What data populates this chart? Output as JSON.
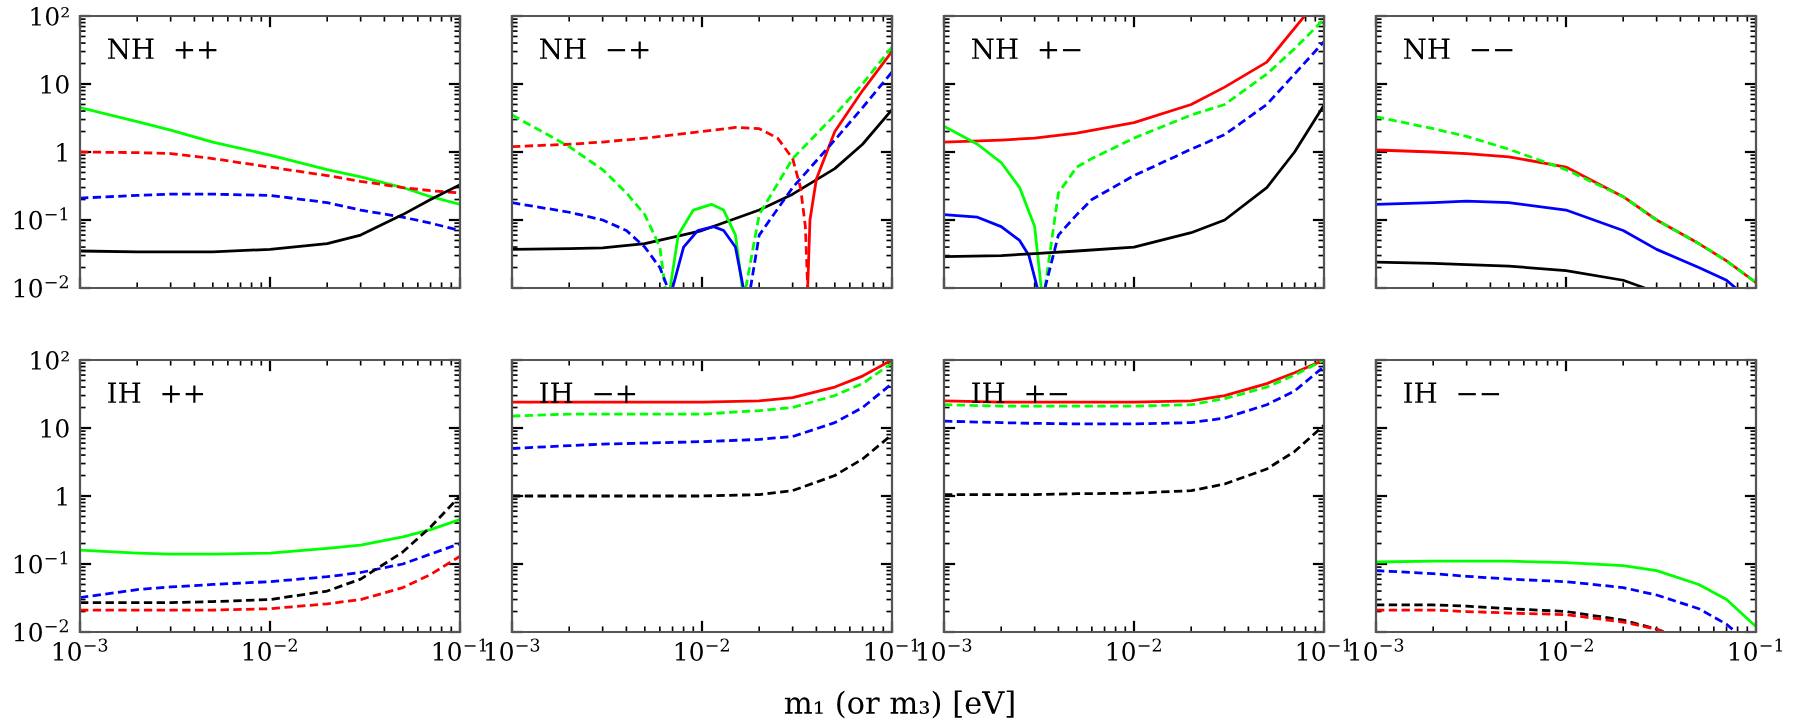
{
  "chart_data": [
    {
      "type": "line",
      "log": "xy",
      "xlim": [
        0.001,
        0.1
      ],
      "ylim": [
        0.01,
        100
      ],
      "tick_labels": "y",
      "grid": false,
      "legend": false,
      "annotations": [
        "NH  ++"
      ],
      "xticks": [
        {
          "value": 0.001,
          "label": null
        },
        {
          "value": 0.01,
          "label": null
        },
        {
          "value": 0.1,
          "label": null
        }
      ],
      "yticks": [
        {
          "value": 0.01,
          "label": "10$^{−2}$"
        },
        {
          "value": 0.1,
          "label": "10$^{−1}$"
        },
        1,
        10,
        {
          "value": 100,
          "label": "10²"
        }
      ],
      "x": [
        0.001,
        0.002,
        0.003,
        0.005,
        0.01,
        0.02,
        0.03,
        0.05,
        0.07,
        0.1
      ],
      "series": [
        {
          "color": "#00ff00",
          "line_style": "solid",
          "values": [
            4.5,
            2.8,
            2.1,
            1.4,
            0.9,
            0.55,
            0.43,
            0.3,
            0.22,
            0.17
          ]
        },
        {
          "color": "#ff0000",
          "line_style": "dashed",
          "values": [
            1.0,
            0.98,
            0.95,
            0.8,
            0.6,
            0.45,
            0.37,
            0.3,
            0.27,
            0.25
          ]
        },
        {
          "color": "#0000ff",
          "line_style": "dashed",
          "values": [
            0.21,
            0.23,
            0.24,
            0.24,
            0.23,
            0.18,
            0.14,
            0.11,
            0.09,
            0.07
          ]
        },
        {
          "color": "#000000",
          "line_style": "solid",
          "values": [
            0.035,
            0.034,
            0.034,
            0.034,
            0.037,
            0.045,
            0.06,
            0.12,
            0.2,
            0.33
          ]
        }
      ]
    },
    {
      "type": "line",
      "log": "xy",
      "xlim": [
        0.001,
        0.1
      ],
      "ylim": [
        0.01,
        100
      ],
      "tick_labels": false,
      "grid": false,
      "legend": false,
      "annotations": [
        "NH  −+"
      ],
      "xticks": [
        {
          "value": 0.001,
          "label": null
        },
        {
          "value": 0.01,
          "label": null
        },
        {
          "value": 0.1,
          "label": null
        }
      ],
      "yticks": [
        {
          "value": 0.01,
          "label": null
        },
        {
          "value": 0.1,
          "label": null
        },
        {
          "value": 1,
          "label": null
        },
        {
          "value": 10,
          "label": null
        },
        {
          "value": 100,
          "label": null
        }
      ],
      "x": [
        0.001,
        0.002,
        0.003,
        0.005,
        0.01,
        0.02,
        0.03,
        0.05,
        0.07,
        0.1
      ],
      "series": [
        {
          "color": "#000000",
          "line_style": "solid",
          "values": [
            0.037,
            0.038,
            0.039,
            0.045,
            0.07,
            0.14,
            0.24,
            0.57,
            1.3,
            4.2
          ]
        },
        {
          "color": "#ff0000",
          "line_style": "dashed",
          "x": [
            0.001,
            0.002,
            0.003,
            0.005,
            0.01,
            0.015,
            0.02,
            0.025,
            0.03,
            0.033,
            0.035,
            0.036
          ],
          "values": [
            1.2,
            1.3,
            1.4,
            1.6,
            2.0,
            2.3,
            2.2,
            1.6,
            0.8,
            0.3,
            0.08,
            0.01
          ]
        },
        {
          "color": "#ff0000",
          "line_style": "solid",
          "x": [
            0.036,
            0.037,
            0.04,
            0.05,
            0.07,
            0.1
          ],
          "values": [
            0.01,
            0.1,
            0.4,
            2.0,
            8,
            30
          ]
        },
        {
          "color": "#00ff00",
          "line_style": "dashed",
          "x": [
            0.001,
            0.002,
            0.003,
            0.004,
            0.005,
            0.006,
            0.0064
          ],
          "values": [
            3.5,
            1.2,
            0.55,
            0.25,
            0.12,
            0.04,
            0.01
          ]
        },
        {
          "color": "#00ff00",
          "line_style": "solid",
          "x": [
            0.0068,
            0.0075,
            0.009,
            0.0112,
            0.013,
            0.015,
            0.0163
          ],
          "values": [
            0.01,
            0.06,
            0.14,
            0.17,
            0.14,
            0.06,
            0.01
          ]
        },
        {
          "color": "#00ff00",
          "line_style": "dashed",
          "x": [
            0.017,
            0.02,
            0.03,
            0.05,
            0.07,
            0.1
          ],
          "values": [
            0.01,
            0.12,
            0.8,
            3.5,
            10,
            35
          ]
        },
        {
          "color": "#0000ff",
          "line_style": "dashed",
          "x": [
            0.001,
            0.002,
            0.003,
            0.004,
            0.005,
            0.006,
            0.0066
          ],
          "values": [
            0.18,
            0.13,
            0.1,
            0.07,
            0.04,
            0.02,
            0.01
          ]
        },
        {
          "color": "#0000ff",
          "line_style": "solid",
          "x": [
            0.007,
            0.008,
            0.0095,
            0.0115,
            0.013,
            0.015,
            0.0165
          ],
          "values": [
            0.01,
            0.04,
            0.07,
            0.08,
            0.07,
            0.04,
            0.01
          ]
        },
        {
          "color": "#0000ff",
          "line_style": "dashed",
          "x": [
            0.018,
            0.02,
            0.03,
            0.05,
            0.07,
            0.1
          ],
          "values": [
            0.01,
            0.06,
            0.3,
            1.5,
            4.5,
            15
          ]
        }
      ]
    },
    {
      "type": "line",
      "log": "xy",
      "xlim": [
        0.001,
        0.1
      ],
      "ylim": [
        0.01,
        100
      ],
      "tick_labels": false,
      "grid": false,
      "legend": false,
      "annotations": [
        "NH  +−"
      ],
      "xticks": [
        {
          "value": 0.001,
          "label": null
        },
        {
          "value": 0.01,
          "label": null
        },
        {
          "value": 0.1,
          "label": null
        }
      ],
      "yticks": [
        {
          "value": 0.01,
          "label": null
        },
        {
          "value": 0.1,
          "label": null
        },
        {
          "value": 1,
          "label": null
        },
        {
          "value": 10,
          "label": null
        },
        {
          "value": 100,
          "label": null
        }
      ],
      "x": [
        0.001,
        0.002,
        0.003,
        0.005,
        0.01,
        0.02,
        0.03,
        0.05,
        0.07,
        0.1
      ],
      "series": [
        {
          "color": "#ff0000",
          "line_style": "solid",
          "x": [
            0.001,
            0.002,
            0.003,
            0.005,
            0.01,
            0.02,
            0.03,
            0.05,
            0.079
          ],
          "values": [
            1.4,
            1.5,
            1.6,
            1.9,
            2.7,
            5,
            9,
            21,
            100
          ]
        },
        {
          "color": "#00ff00",
          "line_style": "solid",
          "x": [
            0.001,
            0.0015,
            0.002,
            0.0025,
            0.003,
            0.00325
          ],
          "values": [
            2.4,
            1.3,
            0.7,
            0.3,
            0.08,
            0.01
          ]
        },
        {
          "color": "#00ff00",
          "line_style": "dashed",
          "x": [
            0.0034,
            0.004,
            0.005,
            0.006,
            0.01,
            0.02,
            0.03,
            0.05,
            0.07,
            0.1
          ],
          "values": [
            0.01,
            0.25,
            0.6,
            0.8,
            1.6,
            3.5,
            5,
            14,
            33,
            90
          ]
        },
        {
          "color": "#0000ff",
          "line_style": "solid",
          "x": [
            0.001,
            0.0015,
            0.002,
            0.0025,
            0.0028,
            0.0031
          ],
          "values": [
            0.12,
            0.11,
            0.08,
            0.05,
            0.03,
            0.01
          ]
        },
        {
          "color": "#0000ff",
          "line_style": "dashed",
          "x": [
            0.0034,
            0.004,
            0.005,
            0.006,
            0.01,
            0.02,
            0.03,
            0.05,
            0.07,
            0.1
          ],
          "values": [
            0.01,
            0.06,
            0.12,
            0.2,
            0.45,
            1.1,
            1.8,
            5,
            14,
            42
          ]
        },
        {
          "color": "#000000",
          "line_style": "solid",
          "values": [
            0.029,
            0.03,
            0.032,
            0.035,
            0.04,
            0.065,
            0.1,
            0.3,
            1.0,
            4.9
          ]
        }
      ]
    },
    {
      "type": "line",
      "log": "xy",
      "xlim": [
        0.001,
        0.1
      ],
      "ylim": [
        0.01,
        100
      ],
      "tick_labels": false,
      "grid": false,
      "legend": false,
      "annotations": [
        "NH  −−"
      ],
      "xticks": [
        {
          "value": 0.001,
          "label": null
        },
        {
          "value": 0.01,
          "label": null
        },
        {
          "value": 0.1,
          "label": null
        }
      ],
      "yticks": [
        {
          "value": 0.01,
          "label": null
        },
        {
          "value": 0.1,
          "label": null
        },
        {
          "value": 1,
          "label": null
        },
        {
          "value": 10,
          "label": null
        },
        {
          "value": 100,
          "label": null
        }
      ],
      "x": [
        0.001,
        0.002,
        0.003,
        0.005,
        0.01,
        0.02,
        0.03,
        0.05,
        0.07,
        0.1
      ],
      "series": [
        {
          "color": "#ff0000",
          "line_style": "solid",
          "values": [
            1.07,
            1.0,
            0.95,
            0.85,
            0.6,
            0.22,
            0.1,
            0.045,
            0.025,
            0.012
          ]
        },
        {
          "color": "#00ff00",
          "line_style": "dashed",
          "values": [
            3.3,
            2.2,
            1.7,
            1.1,
            0.55,
            0.22,
            0.1,
            0.045,
            0.025,
            0.012
          ]
        },
        {
          "color": "#0000ff",
          "line_style": "solid",
          "x": [
            0.001,
            0.002,
            0.003,
            0.005,
            0.01,
            0.02,
            0.03,
            0.05,
            0.07,
            0.078
          ],
          "values": [
            0.17,
            0.18,
            0.19,
            0.18,
            0.14,
            0.07,
            0.037,
            0.02,
            0.013,
            0.01
          ]
        },
        {
          "color": "#000000",
          "line_style": "solid",
          "x": [
            0.001,
            0.002,
            0.003,
            0.005,
            0.01,
            0.02,
            0.026
          ],
          "values": [
            0.024,
            0.023,
            0.022,
            0.021,
            0.018,
            0.013,
            0.01
          ]
        }
      ]
    },
    {
      "type": "line",
      "log": "xy",
      "xlim": [
        0.001,
        0.1
      ],
      "ylim": [
        0.01,
        100
      ],
      "grid": false,
      "legend": false,
      "annotations": [
        "IH  ++"
      ],
      "xticks": [
        {
          "value": 0.001,
          "label": "10$^{−3}$"
        },
        {
          "value": 0.01,
          "label": "10$^{−2}$"
        },
        {
          "value": 0.1,
          "label": "10$^{−1}$"
        }
      ],
      "yticks": [
        {
          "value": 0.01,
          "label": "10$^{−2}$"
        },
        {
          "value": 0.1,
          "label": "10$^{−1}$"
        },
        1,
        10,
        {
          "value": 100,
          "label": "10²"
        }
      ],
      "x": [
        0.001,
        0.002,
        0.003,
        0.005,
        0.01,
        0.02,
        0.03,
        0.05,
        0.07,
        0.1
      ],
      "series": [
        {
          "color": "#00ff00",
          "line_style": "solid",
          "values": [
            0.16,
            0.145,
            0.14,
            0.14,
            0.145,
            0.17,
            0.19,
            0.25,
            0.32,
            0.45
          ]
        },
        {
          "color": "#0000ff",
          "line_style": "dashed",
          "values": [
            0.032,
            0.042,
            0.046,
            0.05,
            0.055,
            0.065,
            0.075,
            0.1,
            0.14,
            0.2
          ]
        },
        {
          "color": "#000000",
          "line_style": "dashed",
          "values": [
            0.027,
            0.027,
            0.027,
            0.028,
            0.03,
            0.04,
            0.06,
            0.15,
            0.35,
            1.0
          ]
        },
        {
          "color": "#ff0000",
          "line_style": "dashed",
          "values": [
            0.021,
            0.021,
            0.021,
            0.021,
            0.022,
            0.026,
            0.03,
            0.045,
            0.07,
            0.13
          ]
        }
      ]
    },
    {
      "type": "line",
      "log": "xy",
      "xlim": [
        0.001,
        0.1
      ],
      "ylim": [
        0.01,
        100
      ],
      "tick_labels": "x",
      "grid": false,
      "legend": false,
      "annotations": [
        "IH  −+"
      ],
      "xlabel": "m₁ (or m₃) [eV]",
      "xticks": [
        {
          "value": 0.001,
          "label": "10$^{−3}$"
        },
        {
          "value": 0.01,
          "label": "10$^{−2}$"
        },
        {
          "value": 0.1,
          "label": "10$^{−1}$"
        }
      ],
      "yticks": [
        {
          "value": 0.01,
          "label": null
        },
        {
          "value": 0.1,
          "label": null
        },
        {
          "value": 1,
          "label": null
        },
        {
          "value": 10,
          "label": null
        },
        {
          "value": 100,
          "label": null
        }
      ],
      "x": [
        0.001,
        0.002,
        0.003,
        0.005,
        0.01,
        0.02,
        0.03,
        0.05,
        0.07,
        0.1
      ],
      "series": [
        {
          "color": "#ff0000",
          "line_style": "solid",
          "values": [
            24,
            24,
            24,
            24,
            24,
            25,
            28,
            40,
            58,
            100
          ]
        },
        {
          "color": "#00ff00",
          "line_style": "dashed",
          "values": [
            15,
            16,
            16,
            16,
            16,
            18,
            20,
            30,
            45,
            90
          ]
        },
        {
          "color": "#0000ff",
          "line_style": "dashed",
          "values": [
            5,
            5.5,
            5.8,
            6,
            6.3,
            6.8,
            7.5,
            12,
            20,
            45
          ]
        },
        {
          "color": "#000000",
          "line_style": "dashed",
          "values": [
            1.0,
            1.0,
            1.0,
            1.0,
            1.0,
            1.05,
            1.2,
            2,
            3.5,
            8
          ]
        }
      ]
    },
    {
      "type": "line",
      "log": "xy",
      "xlim": [
        0.001,
        0.1
      ],
      "ylim": [
        0.01,
        100
      ],
      "tick_labels": "x",
      "grid": false,
      "legend": false,
      "annotations": [
        "IH  +−"
      ],
      "xticks": [
        {
          "value": 0.001,
          "label": "10$^{−3}$"
        },
        {
          "value": 0.01,
          "label": "10$^{−2}$"
        },
        {
          "value": 0.1,
          "label": "10$^{−1}$"
        }
      ],
      "yticks": [
        {
          "value": 0.01,
          "label": null
        },
        {
          "value": 0.1,
          "label": null
        },
        {
          "value": 1,
          "label": null
        },
        {
          "value": 10,
          "label": null
        },
        {
          "value": 100,
          "label": null
        }
      ],
      "x": [
        0.001,
        0.002,
        0.003,
        0.005,
        0.01,
        0.02,
        0.03,
        0.05,
        0.07,
        0.1
      ],
      "series": [
        {
          "color": "#ff0000",
          "line_style": "solid",
          "values": [
            25,
            24,
            24,
            24,
            24,
            25,
            30,
            45,
            65,
            100
          ]
        },
        {
          "color": "#00ff00",
          "line_style": "dashed",
          "values": [
            22,
            21,
            21,
            21,
            21,
            22,
            27,
            40,
            60,
            100
          ]
        },
        {
          "color": "#0000ff",
          "line_style": "dashed",
          "values": [
            12.6,
            12,
            11.7,
            11.5,
            11.5,
            12,
            14,
            22,
            35,
            80
          ]
        },
        {
          "color": "#000000",
          "line_style": "dashed",
          "values": [
            1.05,
            1.05,
            1.05,
            1.08,
            1.1,
            1.2,
            1.5,
            2.5,
            4.5,
            11
          ]
        }
      ]
    },
    {
      "type": "line",
      "log": "xy",
      "xlim": [
        0.001,
        0.1
      ],
      "ylim": [
        0.01,
        100
      ],
      "tick_labels": "x",
      "grid": false,
      "legend": false,
      "annotations": [
        "IH  −−"
      ],
      "xticks": [
        {
          "value": 0.001,
          "label": "10$^{−3}$"
        },
        {
          "value": 0.01,
          "label": "10$^{−2}$"
        },
        {
          "value": 0.1,
          "label": "10$^{−1}$"
        }
      ],
      "yticks": [
        {
          "value": 0.01,
          "label": null
        },
        {
          "value": 0.1,
          "label": null
        },
        {
          "value": 1,
          "label": null
        },
        {
          "value": 10,
          "label": null
        },
        {
          "value": 100,
          "label": null
        }
      ],
      "x": [
        0.001,
        0.002,
        0.003,
        0.005,
        0.01,
        0.02,
        0.03,
        0.05,
        0.07,
        0.1
      ],
      "series": [
        {
          "color": "#00ff00",
          "line_style": "solid",
          "values": [
            0.107,
            0.11,
            0.11,
            0.11,
            0.105,
            0.095,
            0.08,
            0.05,
            0.03,
            0.012
          ]
        },
        {
          "color": "#0000ff",
          "line_style": "dashed",
          "x": [
            0.001,
            0.002,
            0.003,
            0.005,
            0.01,
            0.02,
            0.03,
            0.05,
            0.07,
            0.078
          ],
          "values": [
            0.08,
            0.072,
            0.066,
            0.06,
            0.055,
            0.045,
            0.035,
            0.022,
            0.013,
            0.01
          ]
        },
        {
          "color": "#000000",
          "line_style": "dashed",
          "x": [
            0.001,
            0.002,
            0.003,
            0.005,
            0.01,
            0.02,
            0.03,
            0.033
          ],
          "values": [
            0.025,
            0.025,
            0.024,
            0.022,
            0.02,
            0.015,
            0.011,
            0.01
          ]
        },
        {
          "color": "#ff0000",
          "line_style": "dashed",
          "x": [
            0.001,
            0.002,
            0.003,
            0.005,
            0.01,
            0.02,
            0.03,
            0.033
          ],
          "values": [
            0.021,
            0.021,
            0.02,
            0.019,
            0.018,
            0.014,
            0.011,
            0.01
          ]
        }
      ]
    }
  ]
}
